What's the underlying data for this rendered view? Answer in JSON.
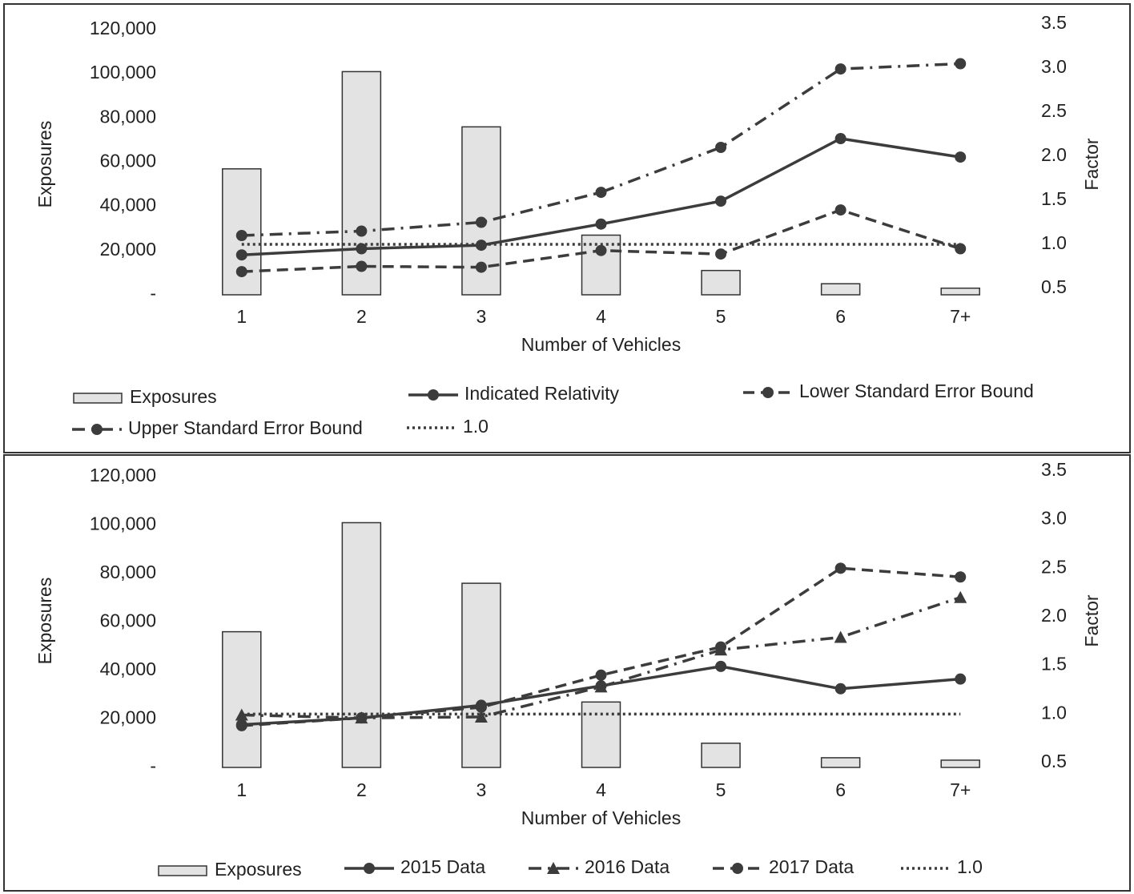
{
  "chart_data": [
    {
      "type": "combo",
      "categories": [
        "1",
        "2",
        "3",
        "4",
        "5",
        "6",
        "7+"
      ],
      "x_label": "Number of Vehicles",
      "y_label": "Exposures",
      "y2_label": "Factor",
      "ylim": [
        0,
        120000
      ],
      "yticks": [
        {
          "value": 0,
          "label": "-"
        },
        {
          "value": 20000,
          "label": "20,000"
        },
        {
          "value": 40000,
          "label": "40,000"
        },
        {
          "value": 60000,
          "label": "60,000"
        },
        {
          "value": 80000,
          "label": "80,000"
        },
        {
          "value": 100000,
          "label": "100,000"
        },
        {
          "value": 120000,
          "label": "120,000"
        }
      ],
      "y2lim": [
        0.5,
        3.5
      ],
      "y2ticks": [
        0.5,
        {
          "value": 1,
          "label": "1.0"
        },
        1.5,
        {
          "value": 2,
          "label": "2.0"
        },
        2.5,
        {
          "value": 3,
          "label": "3.0"
        },
        3.5
      ],
      "series": [
        {
          "name": "Exposures",
          "type": "bar",
          "color": "#e3e3e3",
          "values": [
            57000,
            101000,
            76000,
            27000,
            11000,
            5000,
            3000
          ]
        },
        {
          "name": "Indicated Relativity",
          "type": "line",
          "axis": "y2",
          "color": "#3c3c3c",
          "dash": "solid",
          "marker": "circle",
          "values": [
            0.88,
            0.95,
            0.99,
            1.23,
            1.49,
            2.2,
            1.99
          ]
        },
        {
          "name": "Lower Standard Error Bound",
          "type": "line",
          "axis": "y2",
          "color": "#3c3c3c",
          "dash": "dash",
          "marker": "circle",
          "values": [
            0.69,
            0.75,
            0.74,
            0.93,
            0.89,
            1.39,
            0.95
          ]
        },
        {
          "name": "Upper Standard Error Bound",
          "type": "line",
          "axis": "y2",
          "color": "#3c3c3c",
          "dash": "dashdot",
          "marker": "circle",
          "values": [
            1.1,
            1.15,
            1.25,
            1.59,
            2.1,
            2.99,
            3.05
          ]
        },
        {
          "name": "1.0",
          "type": "line",
          "axis": "y2",
          "color": "#3c3c3c",
          "dash": "dot",
          "marker": "none",
          "values": [
            1,
            1,
            1,
            1,
            1,
            1,
            1
          ]
        }
      ]
    },
    {
      "type": "combo",
      "categories": [
        "1",
        "2",
        "3",
        "4",
        "5",
        "6",
        "7+"
      ],
      "x_label": "Number of Vehicles",
      "y_label": "Exposures",
      "y2_label": "Factor",
      "ylim": [
        0,
        120000
      ],
      "yticks": [
        {
          "value": 0,
          "label": "-"
        },
        {
          "value": 20000,
          "label": "20,000"
        },
        {
          "value": 40000,
          "label": "40,000"
        },
        {
          "value": 60000,
          "label": "60,000"
        },
        {
          "value": 80000,
          "label": "80,000"
        },
        {
          "value": 100000,
          "label": "100,000"
        },
        {
          "value": 120000,
          "label": "120,000"
        }
      ],
      "y2lim": [
        0.5,
        3.5
      ],
      "y2ticks": [
        0.5,
        {
          "value": 1,
          "label": "1.0"
        },
        1.5,
        {
          "value": 2,
          "label": "2.0"
        },
        2.5,
        {
          "value": 3,
          "label": "3.0"
        },
        3.5
      ],
      "series": [
        {
          "name": "Exposures",
          "type": "bar",
          "color": "#e3e3e3",
          "values": [
            56000,
            101000,
            76000,
            27000,
            10000,
            4000,
            3000
          ]
        },
        {
          "name": "2015 Data",
          "type": "line",
          "axis": "y2",
          "color": "#3c3c3c",
          "dash": "solid",
          "marker": "circle",
          "values": [
            0.89,
            0.96,
            1.09,
            1.29,
            1.49,
            1.26,
            1.36
          ]
        },
        {
          "name": "2016 Data",
          "type": "line",
          "axis": "y2",
          "color": "#3c3c3c",
          "dash": "dashdot",
          "marker": "triangle",
          "values": [
            0.99,
            0.96,
            0.97,
            1.28,
            1.66,
            1.79,
            2.2
          ]
        },
        {
          "name": "2017 Data",
          "type": "line",
          "axis": "y2",
          "color": "#3c3c3c",
          "dash": "dash",
          "marker": "circle",
          "values": [
            0.88,
            0.96,
            1.07,
            1.4,
            1.69,
            2.5,
            2.41
          ]
        },
        {
          "name": "1.0",
          "type": "line",
          "axis": "y2",
          "color": "#3c3c3c",
          "dash": "dot",
          "marker": "none",
          "values": [
            1,
            1,
            1,
            1,
            1,
            1,
            1
          ]
        }
      ]
    }
  ]
}
